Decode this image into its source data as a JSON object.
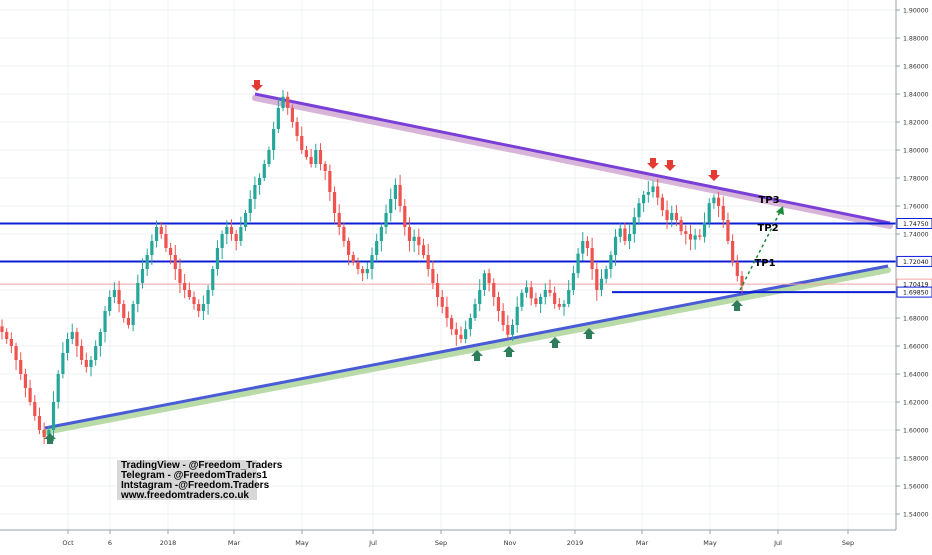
{
  "chart_data": {
    "type": "candlestick",
    "y_axis": {
      "range": [
        1.53,
        1.91
      ],
      "ticks": [
        "1.90000",
        "1.88000",
        "1.86000",
        "1.84000",
        "1.82000",
        "1.80000",
        "1.78000",
        "1.76000",
        "1.74000",
        "1.72000",
        "1.70000",
        "1.68000",
        "1.66000",
        "1.64000",
        "1.62000",
        "1.60000",
        "1.58000",
        "1.56000",
        "1.54000"
      ]
    },
    "x_axis": {
      "ticks": [
        "Oct",
        "6",
        "2018",
        "Mar",
        "May",
        "Jul",
        "Sep",
        "Nov",
        "2019",
        "Mar",
        "May",
        "Jul",
        "Sep"
      ]
    },
    "price_labels": [
      {
        "text": "1.74750",
        "value": 1.7475,
        "color": "#0d1fd6"
      },
      {
        "text": "1.72040",
        "value": 1.7204,
        "color": "#0d1fd6"
      },
      {
        "text": "1.70419",
        "value": 1.7042,
        "color": "#f5a3a3"
      },
      {
        "text": "1.69850",
        "value": 1.6985,
        "color": "#0d1fd6"
      }
    ],
    "horizontal_levels": [
      1.7475,
      1.7204,
      1.7042,
      1.6985
    ],
    "annotations": [
      "TP3",
      "TP2",
      "TP1"
    ],
    "series": [
      {
        "values": [
          1.67,
          1.665,
          1.66,
          1.65,
          1.64,
          1.63,
          1.62,
          1.61,
          1.6,
          1.595,
          1.6,
          1.62,
          1.64,
          1.655,
          1.665,
          1.67,
          1.66,
          1.65,
          1.645,
          1.65,
          1.66,
          1.67,
          1.685,
          1.695,
          1.7,
          1.69,
          1.68,
          1.675,
          1.69,
          1.705,
          1.715,
          1.725,
          1.735,
          1.745,
          1.74,
          1.73,
          1.725,
          1.715,
          1.705,
          1.7,
          1.695,
          1.69,
          1.685,
          1.69,
          1.7,
          1.715,
          1.73,
          1.74,
          1.745,
          1.74,
          1.735,
          1.745,
          1.755,
          1.765,
          1.775,
          1.78,
          1.79,
          1.8,
          1.815,
          1.83,
          1.838,
          1.83,
          1.82,
          1.81,
          1.8,
          1.795,
          1.79,
          1.8,
          1.79,
          1.785,
          1.77,
          1.755,
          1.745,
          1.735,
          1.725,
          1.72,
          1.715,
          1.712,
          1.715,
          1.725,
          1.735,
          1.745,
          1.755,
          1.765,
          1.775,
          1.76,
          1.745,
          1.735,
          1.738,
          1.732,
          1.725,
          1.715,
          1.705,
          1.695,
          1.688,
          1.68,
          1.672,
          1.668,
          1.665,
          1.672,
          1.68,
          1.69,
          1.7,
          1.712,
          1.705,
          1.695,
          1.685,
          1.675,
          1.668,
          1.675,
          1.688,
          1.698,
          1.702,
          1.694,
          1.69,
          1.695,
          1.7,
          1.698,
          1.69,
          1.688,
          1.69,
          1.7,
          1.712,
          1.726,
          1.735,
          1.73,
          1.715,
          1.7,
          1.708,
          1.715,
          1.725,
          1.738,
          1.744,
          1.735,
          1.74,
          1.752,
          1.762,
          1.768,
          1.77,
          1.774,
          1.766,
          1.757,
          1.75,
          1.755,
          1.75,
          1.742,
          1.74,
          1.736,
          1.739,
          1.738,
          1.748,
          1.762,
          1.766,
          1.76,
          1.75,
          1.735,
          1.72,
          1.71,
          1.703
        ]
      }
    ]
  },
  "watermark": {
    "lines": [
      "TradingView - @Freedom_Traders",
      "Telegram - @FreedomTraders1",
      "Intstagram -@Freedom.Traders",
      "www.freedomtraders.co.uk"
    ]
  },
  "colors": {
    "up": "#26a69a",
    "down": "#ef5350",
    "level": "#0d1fd6",
    "resistance": "#7a3fd6",
    "support": "#4a5bd6",
    "marker_up": "#2e7d5b",
    "marker_down": "#e53935"
  }
}
